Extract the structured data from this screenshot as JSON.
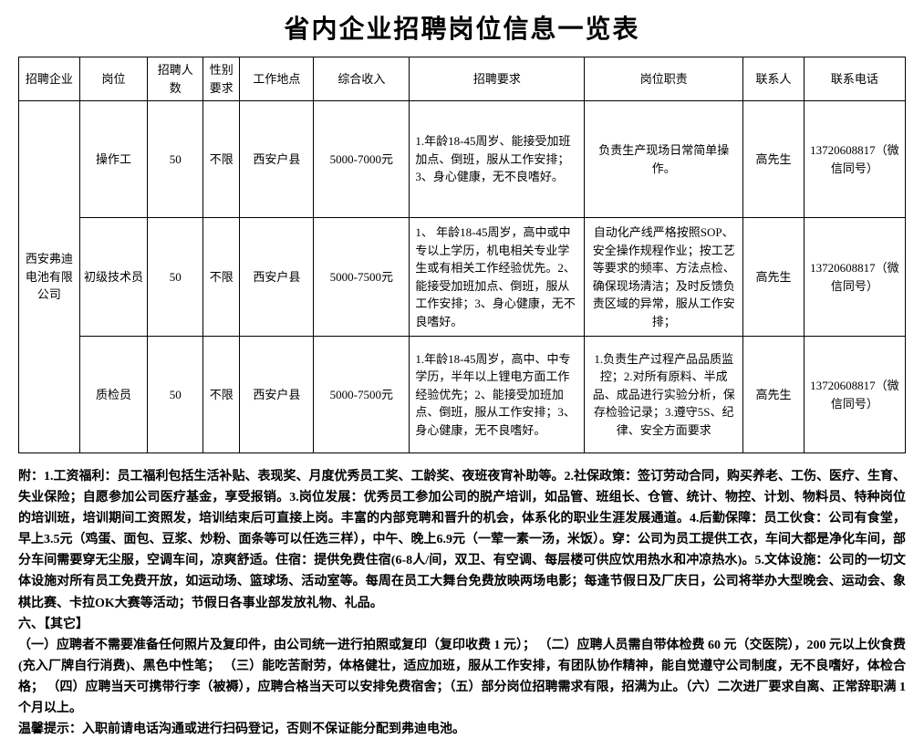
{
  "title": "省内企业招聘岗位信息一览表",
  "headers": {
    "company": "招聘企业",
    "position": "岗位",
    "count": "招聘人数",
    "gender": "性别要求",
    "location": "工作地点",
    "salary": "综合收入",
    "requirements": "招聘要求",
    "duties": "岗位职责",
    "contact": "联系人",
    "phone": "联系电话"
  },
  "company": "西安弗迪电池有限公司",
  "rows": [
    {
      "position": "操作工",
      "count": "50",
      "gender": "不限",
      "location": "西安户县",
      "salary": "5000-7000元",
      "requirements": "1.年龄18-45周岁、能接受加班加点、倒班，服从工作安排；3、身心健康，无不良嗜好。",
      "duties": "负责生产现场日常简单操作。",
      "duty_center": true,
      "contact": "高先生",
      "phone": "13720608817（微信同号）"
    },
    {
      "position": "初级技术员",
      "count": "50",
      "gender": "不限",
      "location": "西安户县",
      "salary": "5000-7500元",
      "requirements": "1、 年龄18-45周岁，高中或中专以上学历，机电相关专业学生或有相关工作经验优先。2、 能接受加班加点、倒班，服从工作安排；3、身心健康，无不良嗜好。",
      "duties": "自动化产线严格按照SOP、安全操作规程作业；按工艺等要求的频率、方法点检、确保现场清洁；及时反馈负责区域的异常，服从工作安排；",
      "duty_center": true,
      "contact": "高先生",
      "phone": "13720608817（微信同号）"
    },
    {
      "position": "质检员",
      "count": "50",
      "gender": "不限",
      "location": "西安户县",
      "salary": "5000-7500元",
      "requirements": "1.年龄18-45周岁，高中、中专学历，半年以上锂电方面工作经验优先；2、能接受加班加点、倒班，服从工作安排；3、身心健康，无不良嗜好。",
      "duties": "1.负责生产过程产品品质监控；2.对所有原料、半成品、成品进行实验分析，保存检验记录；3.遵守5S、纪律、安全方面要求",
      "duty_center": true,
      "contact": "高先生",
      "phone": "13720608817（微信同号）"
    }
  ],
  "notes": [
    "附：1.工资福利：员工福利包括生活补贴、表现奖、月度优秀员工奖、工龄奖、夜班夜宵补助等。2.社保政策：签订劳动合同，购买养老、工伤、医疗、生育、失业保险；自愿参加公司医疗基金，享受报销。3.岗位发展：优秀员工参加公司的脱产培训，如品管、班组长、仓管、统计、物控、计划、物料员、特种岗位的培训班，培训期间工资照发，培训结束后可直接上岗。丰富的内部竞聘和晋升的机会，体系化的职业生涯发展通道。4.后勤保障：员工伙食：公司有食堂，早上3.5元（鸡蛋、面包、豆浆、炒粉、面条等可以任选三样），中午、晚上6.9元（一荤一素一汤，米饭）。穿：公司为员工提供工衣，车间大都是净化车间，部分车间需要穿无尘服，空调车间，凉爽舒适。住宿：提供免费住宿(6-8人/间，双卫、有空调、每层楼可供应饮用热水和冲凉热水)。5.文体设施：公司的一切文体设施对所有员工免费开放，如运动场、篮球场、活动室等。每周在员工大舞台免费放映两场电影；每逢节假日及厂庆日，公司将举办大型晚会、运动会、象棋比赛、卡拉OK大赛等活动；节假日各事业部发放礼物、礼品。",
    "六、【其它】",
    "（一）应聘者不需要准备任何照片及复印件，由公司统一进行拍照或复印（复印收费 1 元）； （二）应聘人员需自带体检费 60 元（交医院），200 元以上伙食费(充入厂牌自行消费)、黑色中性笔； （三）能吃苦耐劳，体格健壮，适应加班，服从工作安排，有团队协作精神，能自觉遵守公司制度，无不良嗜好，体检合格； （四）应聘当天可携带行李（被褥），应聘合格当天可以安排免费宿舍；（五）部分岗位招聘需求有限，招满为止。（六）二次进厂要求自离、正常辞职满 1 个月以上。",
    "温馨提示：入职前请电话沟通或进行扫码登记，否则不保证能分配到弗迪电池。"
  ]
}
